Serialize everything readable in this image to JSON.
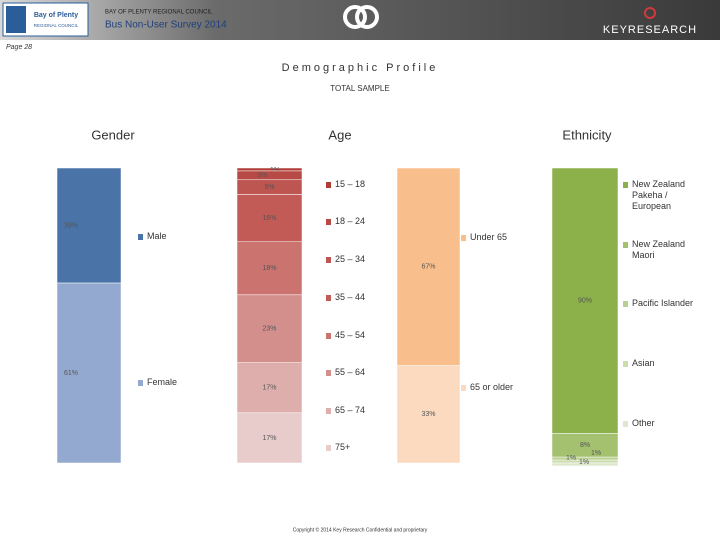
{
  "header": {
    "logo_line1": "Bay of Plenty",
    "logo_line2": "REGIONAL COUNCIL",
    "org": "BAY OF PLENTY REGIONAL COUNCIL",
    "survey": "Bus Non-User Survey 2014",
    "brand": "KEYRESEARCH"
  },
  "page": "Page 28",
  "title": "Demographic Profile",
  "subtitle": "TOTAL SAMPLE",
  "footer": "Copyright © 2014 Key Research Confidential and proprietary",
  "chart_data": [
    {
      "type": "stacked_bar",
      "title": "Gender",
      "series": [
        {
          "name": "Male",
          "color": "#4a74a8",
          "values": [
            39
          ],
          "value_labels": [
            "39%"
          ]
        },
        {
          "name": "Female",
          "color": "#93a9d0",
          "values": [
            61
          ],
          "value_labels": [
            "61%"
          ]
        }
      ]
    },
    {
      "type": "stacked_bar",
      "title": "Age",
      "series": [
        {
          "name": "15 – 18",
          "color": "#b13c36",
          "values": [
            1
          ],
          "value_labels": [
            "1%"
          ]
        },
        {
          "name": "18 – 24",
          "color": "#b84a45",
          "values": [
            3
          ],
          "value_labels": [
            "3%"
          ]
        },
        {
          "name": "25 – 34",
          "color": "#bd5550",
          "values": [
            5
          ],
          "value_labels": [
            "5%"
          ]
        },
        {
          "name": "35 – 44",
          "color": "#c25a55",
          "values": [
            16
          ],
          "value_labels": [
            "16%"
          ]
        },
        {
          "name": "45 – 54",
          "color": "#ca736f",
          "values": [
            18
          ],
          "value_labels": [
            "18%"
          ]
        },
        {
          "name": "55 – 64",
          "color": "#d38f8c",
          "values": [
            23
          ],
          "value_labels": [
            "23%"
          ]
        },
        {
          "name": "65 – 74",
          "color": "#ddaeab",
          "values": [
            17
          ],
          "value_labels": [
            "17%"
          ]
        },
        {
          "name": "75+",
          "color": "#e8cccc",
          "values": [
            17
          ],
          "value_labels": [
            "17%"
          ]
        }
      ]
    },
    {
      "type": "stacked_bar",
      "series": [
        {
          "name": "Under 65",
          "color": "#f8bf8d",
          "values": [
            67
          ],
          "value_labels": [
            "67%"
          ]
        },
        {
          "name": "65 or older",
          "color": "#fbdac0",
          "values": [
            33
          ],
          "value_labels": [
            "33%"
          ]
        }
      ]
    },
    {
      "type": "stacked_bar",
      "title": "Ethnicity",
      "series": [
        {
          "name": "New Zealand Pakeha / European",
          "color": "#8cb04a",
          "values": [
            90
          ],
          "value_labels": [
            "90%"
          ]
        },
        {
          "name": "New Zealand Maori",
          "color": "#a3c16e",
          "values": [
            8
          ],
          "value_labels": [
            "8%"
          ]
        },
        {
          "name": "Pacific Islander",
          "color": "#b9d08f",
          "values": [
            1
          ],
          "value_labels": [
            "1%"
          ]
        },
        {
          "name": "Asian",
          "color": "#cbdcad",
          "values": [
            1
          ],
          "value_labels": [
            "1%"
          ]
        },
        {
          "name": "Other",
          "color": "#dde8cd",
          "values": [
            1
          ],
          "value_labels": [
            "1%"
          ]
        }
      ]
    }
  ]
}
